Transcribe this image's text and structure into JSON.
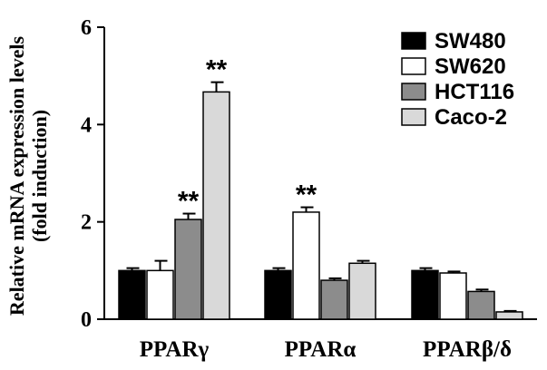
{
  "chart_data": {
    "type": "bar",
    "categories": [
      "PPARγ",
      "PPARα",
      "PPARβ/δ"
    ],
    "series": [
      {
        "name": "SW480",
        "values": [
          1.0,
          1.0,
          1.0
        ],
        "errors": [
          0.05,
          0.05,
          0.05
        ],
        "color": "#000000"
      },
      {
        "name": "SW620",
        "values": [
          1.0,
          2.2,
          0.95
        ],
        "errors": [
          0.2,
          0.1,
          0.03
        ],
        "color": "#ffffff"
      },
      {
        "name": "HCT116",
        "values": [
          2.05,
          0.8,
          0.57
        ],
        "errors": [
          0.12,
          0.04,
          0.04
        ],
        "color": "#8c8c8c"
      },
      {
        "name": "Caco-2",
        "values": [
          4.67,
          1.15,
          0.15
        ],
        "errors": [
          0.2,
          0.05,
          0.02
        ],
        "color": "#d9d9d9"
      }
    ],
    "significance": [
      {
        "category": "PPARγ",
        "series": "HCT116",
        "label": "**"
      },
      {
        "category": "PPARγ",
        "series": "Caco-2",
        "label": "**"
      },
      {
        "category": "PPARα",
        "series": "SW620",
        "label": "**"
      }
    ],
    "ylabel_lines": [
      "Relative mRNA expression levels",
      "(fold induction)"
    ],
    "xlabel": "",
    "yticks": [
      "0",
      "2",
      "4",
      "6"
    ],
    "ylim": [
      0,
      6
    ],
    "legend_position": "top-right",
    "grid": false
  }
}
